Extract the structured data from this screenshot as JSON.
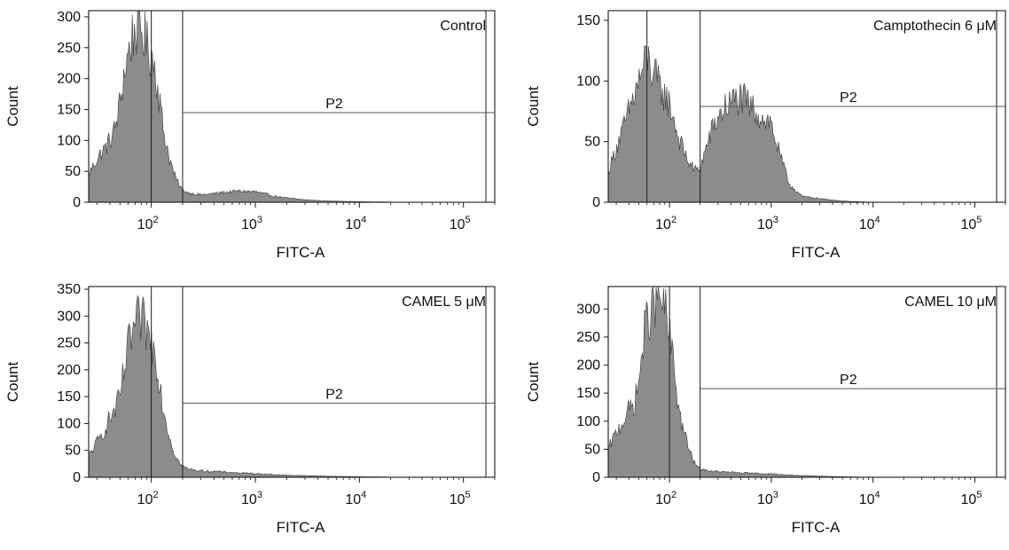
{
  "figure": {
    "background": "#ffffff",
    "fill_color": "#8c8c8c",
    "line_color": "#1a1a1a"
  },
  "chart_data": [
    {
      "type": "area",
      "title": "Control",
      "xlabel": "FITC-A",
      "ylabel": "Count",
      "x_scale": "log",
      "xlim": [
        25,
        200000
      ],
      "ylim": [
        0,
        310
      ],
      "x_ticks": [
        100,
        1000,
        10000,
        100000
      ],
      "x_tick_labels": [
        {
          "base": "10",
          "exp": "2"
        },
        {
          "base": "10",
          "exp": "3"
        },
        {
          "base": "10",
          "exp": "4"
        },
        {
          "base": "10",
          "exp": "5"
        }
      ],
      "y_ticks": [
        0,
        50,
        100,
        150,
        200,
        250,
        300
      ],
      "gate": {
        "label": "P2",
        "x_min": 200,
        "x_max": 200000,
        "y_level": 145
      },
      "marker_lines_x": [
        100,
        200
      ],
      "series": [
        {
          "x": [
            25,
            30,
            35,
            40,
            45,
            50,
            55,
            60,
            65,
            70,
            75,
            80,
            85,
            90,
            95,
            100,
            110,
            120,
            130,
            150,
            170,
            190,
            200,
            230,
            300,
            400,
            500,
            700,
            1000,
            1500,
            2000,
            3000,
            5000,
            10000,
            30000
          ],
          "y": [
            45,
            70,
            85,
            100,
            120,
            160,
            210,
            240,
            265,
            280,
            285,
            280,
            270,
            255,
            245,
            240,
            215,
            165,
            120,
            70,
            40,
            25,
            20,
            15,
            12,
            14,
            16,
            18,
            17,
            10,
            7,
            4,
            2,
            1,
            0
          ]
        }
      ]
    },
    {
      "type": "area",
      "title": "Camptothecin 6 μM",
      "xlabel": "FITC-A",
      "ylabel": "Count",
      "x_scale": "log",
      "xlim": [
        25,
        200000
      ],
      "ylim": [
        0,
        158
      ],
      "x_ticks": [
        100,
        1000,
        10000,
        100000
      ],
      "x_tick_labels": [
        {
          "base": "10",
          "exp": "2"
        },
        {
          "base": "10",
          "exp": "3"
        },
        {
          "base": "10",
          "exp": "4"
        },
        {
          "base": "10",
          "exp": "5"
        }
      ],
      "y_ticks": [
        0,
        50,
        100,
        150
      ],
      "gate": {
        "label": "P2",
        "x_min": 200,
        "x_max": 200000,
        "y_level": 79
      },
      "marker_lines_x": [
        60,
        200
      ],
      "series": [
        {
          "x": [
            25,
            30,
            35,
            40,
            45,
            50,
            55,
            60,
            65,
            70,
            75,
            80,
            90,
            100,
            110,
            120,
            130,
            150,
            170,
            190,
            200,
            220,
            250,
            300,
            350,
            400,
            450,
            500,
            550,
            600,
            700,
            800,
            900,
            1000,
            1200,
            1500,
            2000,
            3000,
            5000,
            10000
          ],
          "y": [
            25,
            45,
            60,
            75,
            88,
            100,
            110,
            120,
            112,
            105,
            100,
            95,
            88,
            80,
            70,
            55,
            48,
            35,
            28,
            26,
            28,
            40,
            55,
            70,
            78,
            82,
            85,
            85,
            83,
            80,
            75,
            70,
            68,
            65,
            40,
            15,
            5,
            3,
            1,
            0
          ]
        }
      ]
    },
    {
      "type": "area",
      "title": "CAMEL 5 μM",
      "xlabel": "FITC-A",
      "ylabel": "Count",
      "x_scale": "log",
      "xlim": [
        25,
        200000
      ],
      "ylim": [
        0,
        355
      ],
      "x_ticks": [
        100,
        1000,
        10000,
        100000
      ],
      "x_tick_labels": [
        {
          "base": "10",
          "exp": "2"
        },
        {
          "base": "10",
          "exp": "3"
        },
        {
          "base": "10",
          "exp": "4"
        },
        {
          "base": "10",
          "exp": "5"
        }
      ],
      "y_ticks": [
        0,
        50,
        100,
        150,
        200,
        250,
        300,
        350
      ],
      "gate": {
        "label": "P2",
        "x_min": 200,
        "x_max": 200000,
        "y_level": 138
      },
      "marker_lines_x": [
        100,
        200
      ],
      "series": [
        {
          "x": [
            25,
            30,
            35,
            40,
            45,
            50,
            55,
            60,
            65,
            70,
            75,
            80,
            85,
            90,
            95,
            100,
            110,
            120,
            130,
            150,
            170,
            190,
            200,
            230,
            300,
            400,
            500,
            700,
            1000,
            1500,
            2000,
            3000,
            5000,
            10000,
            30000
          ],
          "y": [
            40,
            65,
            85,
            110,
            125,
            150,
            200,
            240,
            265,
            280,
            290,
            290,
            285,
            275,
            260,
            250,
            230,
            180,
            130,
            75,
            40,
            25,
            20,
            15,
            12,
            11,
            10,
            8,
            7,
            5,
            4,
            3,
            2,
            1,
            0
          ]
        }
      ]
    },
    {
      "type": "area",
      "title": "CAMEL 10 μM",
      "xlabel": "FITC-A",
      "ylabel": "Count",
      "x_scale": "log",
      "xlim": [
        25,
        200000
      ],
      "ylim": [
        0,
        340
      ],
      "x_ticks": [
        100,
        1000,
        10000,
        100000
      ],
      "x_tick_labels": [
        {
          "base": "10",
          "exp": "2"
        },
        {
          "base": "10",
          "exp": "3"
        },
        {
          "base": "10",
          "exp": "4"
        },
        {
          "base": "10",
          "exp": "5"
        }
      ],
      "y_ticks": [
        0,
        50,
        100,
        150,
        200,
        250,
        300
      ],
      "gate": {
        "label": "P2",
        "x_min": 200,
        "x_max": 200000,
        "y_level": 158
      },
      "marker_lines_x": [
        100,
        200
      ],
      "series": [
        {
          "x": [
            25,
            30,
            35,
            40,
            45,
            50,
            55,
            60,
            65,
            70,
            75,
            80,
            85,
            90,
            95,
            100,
            110,
            120,
            130,
            150,
            170,
            190,
            200,
            230,
            300,
            400,
            500,
            700,
            1000,
            1500,
            2000,
            3000,
            5000,
            10000,
            30000
          ],
          "y": [
            50,
            80,
            100,
            120,
            130,
            170,
            240,
            280,
            300,
            310,
            315,
            320,
            310,
            295,
            275,
            250,
            200,
            140,
            100,
            60,
            30,
            18,
            15,
            12,
            10,
            9,
            8,
            7,
            6,
            4,
            3,
            2,
            1,
            0,
            0
          ]
        }
      ]
    }
  ]
}
